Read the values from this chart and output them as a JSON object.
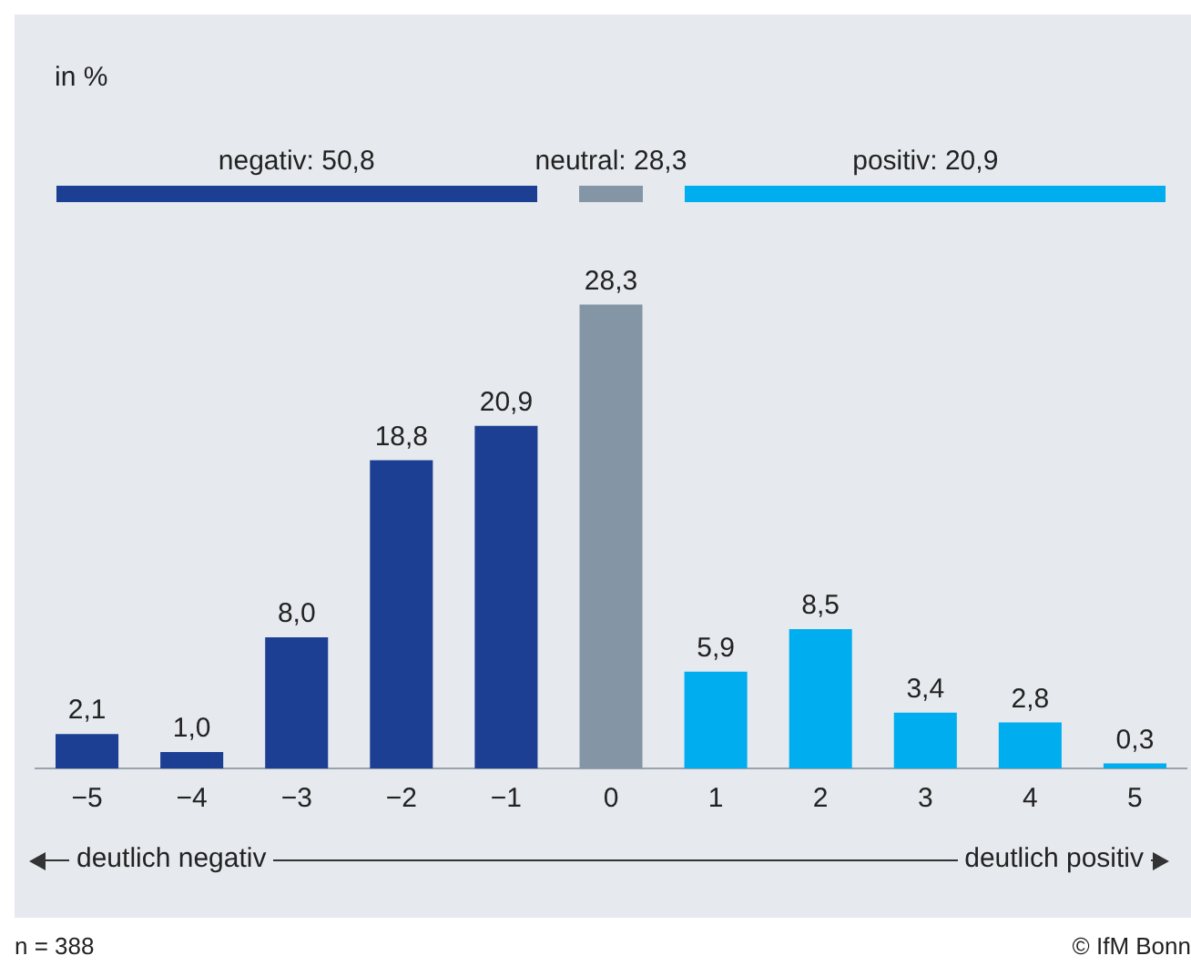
{
  "chart_data": {
    "type": "bar",
    "categories": [
      "−5",
      "−4",
      "−3",
      "−2",
      "−1",
      "0",
      "1",
      "2",
      "3",
      "4",
      "5"
    ],
    "values": [
      2.1,
      1.0,
      8.0,
      18.8,
      20.9,
      28.3,
      5.9,
      8.5,
      3.4,
      2.8,
      0.3
    ],
    "colors": [
      "#1c3f94",
      "#1c3f94",
      "#1c3f94",
      "#1c3f94",
      "#1c3f94",
      "#8496a5",
      "#00aeef",
      "#00aeef",
      "#00aeef",
      "#00aeef",
      "#00aeef"
    ],
    "value_labels": [
      "2,1",
      "1,0",
      "8,0",
      "18,8",
      "20,9",
      "28,3",
      "5,9",
      "8,5",
      "3,4",
      "2,8",
      "0,3"
    ],
    "annotations": [
      "in %",
      "negativ: 50,8",
      "neutral: 28,3",
      "positiv: 20,9",
      "deutlich negativ",
      "deutlich positiv",
      "n = 388",
      "© IfM Bonn"
    ],
    "grid": false,
    "legend": false,
    "tick_labels": "x"
  }
}
